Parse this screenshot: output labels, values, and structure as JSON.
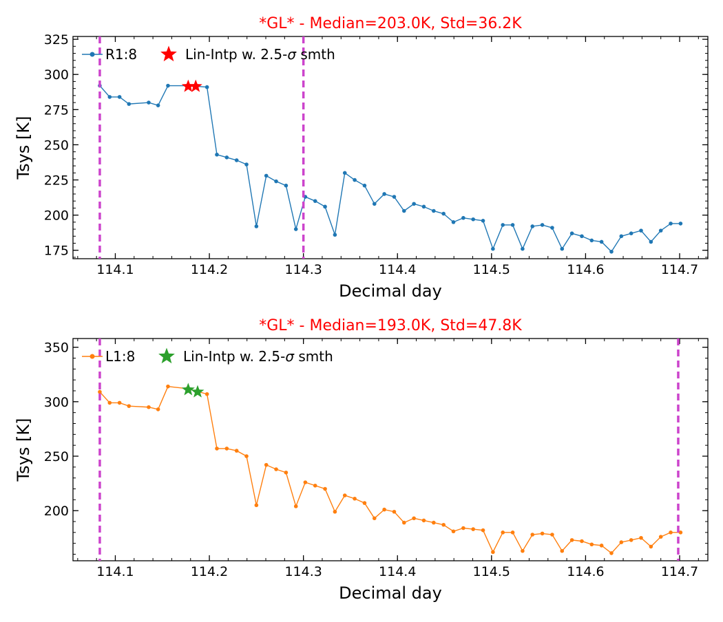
{
  "chart_data": [
    {
      "type": "line",
      "title": "*GL* - Median=203.0K, Std=36.2K",
      "title_color": "#ff0000",
      "xlabel": "Decimal day",
      "ylabel": "Tsys [K]",
      "xlim": [
        114.055,
        114.73
      ],
      "ylim": [
        169,
        327
      ],
      "xticks": [
        114.1,
        114.2,
        114.3,
        114.4,
        114.5,
        114.6,
        114.7
      ],
      "xtick_labels": [
        "114.1",
        "114.2",
        "114.3",
        "114.4",
        "114.5",
        "114.6",
        "114.7"
      ],
      "yticks": [
        175,
        200,
        225,
        250,
        275,
        300,
        325
      ],
      "ytick_labels": [
        "175",
        "200",
        "225",
        "250",
        "275",
        "300",
        "325"
      ],
      "legend_position": "top-left",
      "grid": false,
      "series": [
        {
          "name": "R1:8",
          "color": "#1f77b4",
          "x": [
            114.0835,
            114.094,
            114.1045,
            114.1145,
            114.1355,
            114.1455,
            114.156,
            114.1765,
            114.1975,
            114.208,
            114.2185,
            114.229,
            114.2395,
            114.25,
            114.2605,
            114.271,
            114.2815,
            114.292,
            114.302,
            114.3125,
            114.323,
            114.3335,
            114.344,
            114.3545,
            114.365,
            114.3755,
            114.386,
            114.3965,
            114.407,
            114.4175,
            114.428,
            114.4385,
            114.449,
            114.4595,
            114.47,
            114.4805,
            114.491,
            114.5015,
            114.512,
            114.5225,
            114.533,
            114.5435,
            114.554,
            114.5645,
            114.575,
            114.5855,
            114.596,
            114.6065,
            114.617,
            114.6275,
            114.638,
            114.6485,
            114.659,
            114.6695,
            114.68,
            114.6905,
            114.701
          ],
          "y": [
            292,
            284,
            284,
            279,
            280,
            278,
            292,
            292,
            291,
            243,
            241,
            239,
            236,
            192,
            228,
            224,
            221,
            190,
            213,
            210,
            206,
            186,
            230,
            225,
            221,
            208,
            215,
            213,
            203,
            208,
            206,
            203,
            201,
            195,
            198,
            197,
            196,
            176,
            193,
            193,
            176,
            192,
            193,
            191,
            176,
            187,
            185,
            182,
            181,
            174,
            185,
            187,
            189,
            181,
            189,
            194,
            194
          ]
        },
        {
          "name": "Lin-Intp w. 2.5-σ smth",
          "legend_text": "Lin-Intp w. 2.5-",
          "legend_symbol": "σ",
          "legend_suffix": " smth",
          "marker": "star",
          "color": "#ff0000",
          "x": [
            114.1775,
            114.1855
          ],
          "y": [
            291.5,
            291.5
          ]
        }
      ],
      "vlines": [
        114.0835,
        114.3
      ]
    },
    {
      "type": "line",
      "title": "*GL* - Median=193.0K, Std=47.8K",
      "title_color": "#ff0000",
      "xlabel": "Decimal day",
      "ylabel": "Tsys [K]",
      "xlim": [
        114.055,
        114.73
      ],
      "ylim": [
        154,
        358
      ],
      "xticks": [
        114.1,
        114.2,
        114.3,
        114.4,
        114.5,
        114.6,
        114.7
      ],
      "xtick_labels": [
        "114.1",
        "114.2",
        "114.3",
        "114.4",
        "114.5",
        "114.6",
        "114.7"
      ],
      "yticks": [
        200,
        250,
        300,
        350
      ],
      "ytick_labels": [
        "200",
        "250",
        "300",
        "350"
      ],
      "legend_position": "top-left",
      "grid": false,
      "series": [
        {
          "name": "L1:8",
          "color": "#ff7f0e",
          "x": [
            114.0835,
            114.094,
            114.1045,
            114.1145,
            114.1355,
            114.1455,
            114.156,
            114.1765,
            114.1975,
            114.208,
            114.2185,
            114.229,
            114.2395,
            114.25,
            114.2605,
            114.271,
            114.2815,
            114.292,
            114.302,
            114.3125,
            114.323,
            114.3335,
            114.344,
            114.3545,
            114.365,
            114.3755,
            114.386,
            114.3965,
            114.407,
            114.4175,
            114.428,
            114.4385,
            114.449,
            114.4595,
            114.47,
            114.4805,
            114.491,
            114.5015,
            114.512,
            114.5225,
            114.533,
            114.5435,
            114.554,
            114.5645,
            114.575,
            114.5855,
            114.596,
            114.6065,
            114.617,
            114.6275,
            114.638,
            114.6485,
            114.659,
            114.6695,
            114.68,
            114.6905,
            114.701
          ],
          "y": [
            309,
            299,
            299,
            296,
            295,
            293,
            314,
            312,
            307,
            257,
            257,
            255,
            250,
            205,
            242,
            238,
            235,
            204,
            226,
            223,
            220,
            199,
            214,
            211,
            207,
            193,
            201,
            199,
            189,
            193,
            191,
            189,
            187,
            181,
            184,
            183,
            182,
            162,
            180,
            180,
            163,
            178,
            179,
            178,
            163,
            173,
            172,
            169,
            168,
            161,
            171,
            173,
            175,
            167,
            176,
            180,
            180
          ]
        },
        {
          "name": "Lin-Intp w. 2.5-σ smth",
          "legend_text": "Lin-Intp w. 2.5-",
          "legend_symbol": "σ",
          "legend_suffix": " smth",
          "marker": "star",
          "color": "#2ca02c",
          "x": [
            114.1775,
            114.1875
          ],
          "y": [
            311,
            309
          ]
        }
      ],
      "vlines": [
        114.0835,
        114.6985
      ]
    }
  ],
  "vline_color": "#cc44cc"
}
